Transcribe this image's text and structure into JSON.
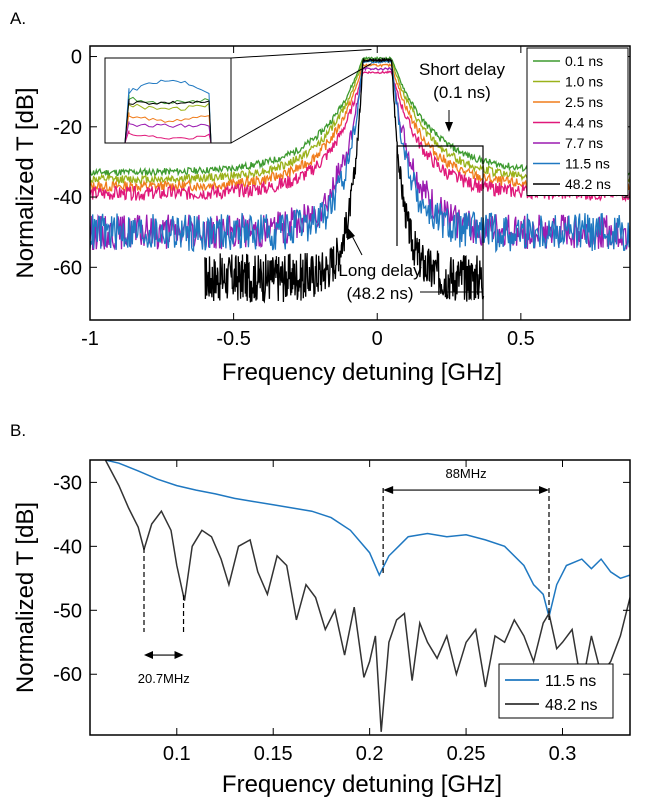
{
  "chart_data": [
    {
      "panel": "A.",
      "type": "line",
      "xlabel": "Frequency detuning [GHz]",
      "ylabel": "Normalized T [dB]",
      "xlim": [
        -1.0,
        0.88
      ],
      "ylim": [
        -75,
        3
      ],
      "xticks": [
        -1,
        -0.5,
        0,
        0.5
      ],
      "xtick_labels": [
        "-1",
        "-0.5",
        "0",
        "0.5"
      ],
      "yticks": [
        0,
        -20,
        -40,
        -60
      ],
      "ytick_labels": [
        "0",
        "-20",
        "-40",
        "-60"
      ],
      "grid": false,
      "legend_position": "top-right",
      "series": [
        {
          "name": "0.1 ns",
          "color": "#3d9a2f",
          "floor": -33,
          "inner": -0.5,
          "width": 0.05,
          "tail": 0.14,
          "noise": 1.0,
          "decay": 0.1,
          "xmin": -1.0,
          "xmax": 0.88,
          "seed": 11
        },
        {
          "name": "1.0 ns",
          "color": "#9ab21a",
          "floor": -35,
          "inner": -1.2,
          "width": 0.05,
          "tail": 0.13,
          "noise": 1.2,
          "decay": 0.1,
          "xmin": -1.0,
          "xmax": 0.88,
          "seed": 12
        },
        {
          "name": "2.5 ns",
          "color": "#f07d1c",
          "floor": -37,
          "inner": -2.5,
          "width": 0.05,
          "tail": 0.12,
          "noise": 1.5,
          "decay": 0.09,
          "xmin": -1.0,
          "xmax": 0.88,
          "seed": 13
        },
        {
          "name": "4.4 ns",
          "color": "#e0197a",
          "floor": -39,
          "inner": -4.5,
          "width": 0.05,
          "tail": 0.11,
          "noise": 2.0,
          "decay": 0.08,
          "xmin": -1.0,
          "xmax": 0.88,
          "seed": 14
        },
        {
          "name": "7.7 ns",
          "color": "#9b1bb0",
          "floor": -50,
          "inner": -3.5,
          "width": 0.05,
          "tail": 0.08,
          "noise": 5.0,
          "decay": 0.06,
          "xmin": -1.0,
          "xmax": 0.88,
          "seed": 15
        },
        {
          "name": "11.5 ns",
          "color": "#1f78c1",
          "floor": -50,
          "inner": -1.5,
          "width": 0.05,
          "tail": 0.06,
          "noise": 5.5,
          "decay": 0.05,
          "xmin": -1.0,
          "xmax": 0.88,
          "seed": 16
        },
        {
          "name": "48.2 ns",
          "color": "#000000",
          "floor": -63,
          "inner": -1.0,
          "width": 0.05,
          "tail": 0.04,
          "noise": 7.0,
          "decay": 0.03,
          "xmin": -0.6,
          "xmax": 0.37,
          "seed": 17
        }
      ],
      "annotations": [
        {
          "text": "Short delay",
          "x": 0.28,
          "y": -3
        },
        {
          "text": "(0.1 ns)",
          "x": 0.28,
          "y": -13
        },
        {
          "text": "Long delay",
          "x": 0.0,
          "y": -59
        },
        {
          "text": "(48.2 ns)",
          "x": 0.0,
          "y": -69
        }
      ],
      "inset": {
        "zoom_xlim": [
          -0.07,
          0.07
        ],
        "zoom_ylim": [
          -2,
          2
        ]
      }
    },
    {
      "panel": "B.",
      "type": "line",
      "xlabel": "Frequency detuning [GHz]",
      "ylabel": "Normalized T [dB]",
      "xlim": [
        0.055,
        0.335
      ],
      "ylim": [
        -69.5,
        -26.5
      ],
      "xticks": [
        0.1,
        0.15,
        0.2,
        0.25,
        0.3
      ],
      "xtick_labels": [
        "0.1",
        "0.15",
        "0.2",
        "0.25",
        "0.3"
      ],
      "yticks": [
        -30,
        -40,
        -50,
        -60
      ],
      "ytick_labels": [
        "-30",
        "-40",
        "-50",
        "-60"
      ],
      "grid": false,
      "legend_position": "bottom-right",
      "series": [
        {
          "name": "11.5 ns",
          "color": "#1f78c1",
          "x": [
            0.063,
            0.07,
            0.08,
            0.09,
            0.1,
            0.11,
            0.12,
            0.13,
            0.14,
            0.15,
            0.16,
            0.17,
            0.18,
            0.19,
            0.2,
            0.205,
            0.21,
            0.215,
            0.22,
            0.23,
            0.24,
            0.25,
            0.26,
            0.27,
            0.28,
            0.285,
            0.29,
            0.293,
            0.297,
            0.302,
            0.31,
            0.315,
            0.32,
            0.325,
            0.33,
            0.335
          ],
          "y": [
            -26.5,
            -27.0,
            -28.2,
            -29.5,
            -30.5,
            -31.2,
            -31.8,
            -32.5,
            -33.0,
            -33.5,
            -34.0,
            -34.5,
            -35.5,
            -37.5,
            -41.0,
            -44.5,
            -41.5,
            -40.0,
            -38.5,
            -38.0,
            -38.5,
            -38.2,
            -39.0,
            -40.0,
            -43.0,
            -46.0,
            -47.5,
            -51.0,
            -46.0,
            -43.0,
            -42.0,
            -43.5,
            -42.0,
            -44.0,
            -45.0,
            -44.5
          ]
        },
        {
          "name": "48.2 ns",
          "color": "#333333",
          "x": [
            0.063,
            0.07,
            0.075,
            0.08,
            0.083,
            0.087,
            0.092,
            0.097,
            0.1,
            0.104,
            0.108,
            0.113,
            0.118,
            0.123,
            0.127,
            0.132,
            0.138,
            0.142,
            0.147,
            0.152,
            0.157,
            0.162,
            0.167,
            0.172,
            0.177,
            0.182,
            0.187,
            0.192,
            0.197,
            0.2,
            0.203,
            0.206,
            0.21,
            0.214,
            0.218,
            0.222,
            0.226,
            0.23,
            0.235,
            0.24,
            0.245,
            0.25,
            0.255,
            0.26,
            0.265,
            0.27,
            0.275,
            0.28,
            0.285,
            0.29,
            0.293,
            0.297,
            0.3,
            0.305,
            0.31,
            0.315,
            0.32,
            0.325,
            0.33,
            0.335
          ],
          "y": [
            -26.5,
            -30.5,
            -34.0,
            -37.0,
            -40.5,
            -36.5,
            -34.5,
            -37.5,
            -43.0,
            -48.5,
            -40.0,
            -37.5,
            -38.5,
            -42.0,
            -46.0,
            -40.0,
            -39.0,
            -44.0,
            -47.5,
            -41.5,
            -43.0,
            -51.5,
            -46.0,
            -48.0,
            -53.0,
            -50.0,
            -57.0,
            -49.5,
            -60.5,
            -58.0,
            -54.0,
            -69.0,
            -55.0,
            -51.5,
            -50.5,
            -61.0,
            -52.0,
            -55.0,
            -57.5,
            -54.0,
            -60.0,
            -55.0,
            -53.0,
            -62.0,
            -54.0,
            -55.0,
            -51.5,
            -54.0,
            -58.0,
            -52.0,
            -50.5,
            -56.0,
            -55.0,
            -53.0,
            -62.0,
            -54.0,
            -60.0,
            -58.0,
            -54.0,
            -48.0
          ]
        }
      ],
      "annotations": [
        {
          "text": "88MHz",
          "x1": 0.207,
          "x2": 0.293,
          "y": -31.2
        },
        {
          "text": "20.7MHz",
          "x1": 0.083,
          "x2": 0.1035,
          "y": -57.0
        }
      ]
    }
  ]
}
